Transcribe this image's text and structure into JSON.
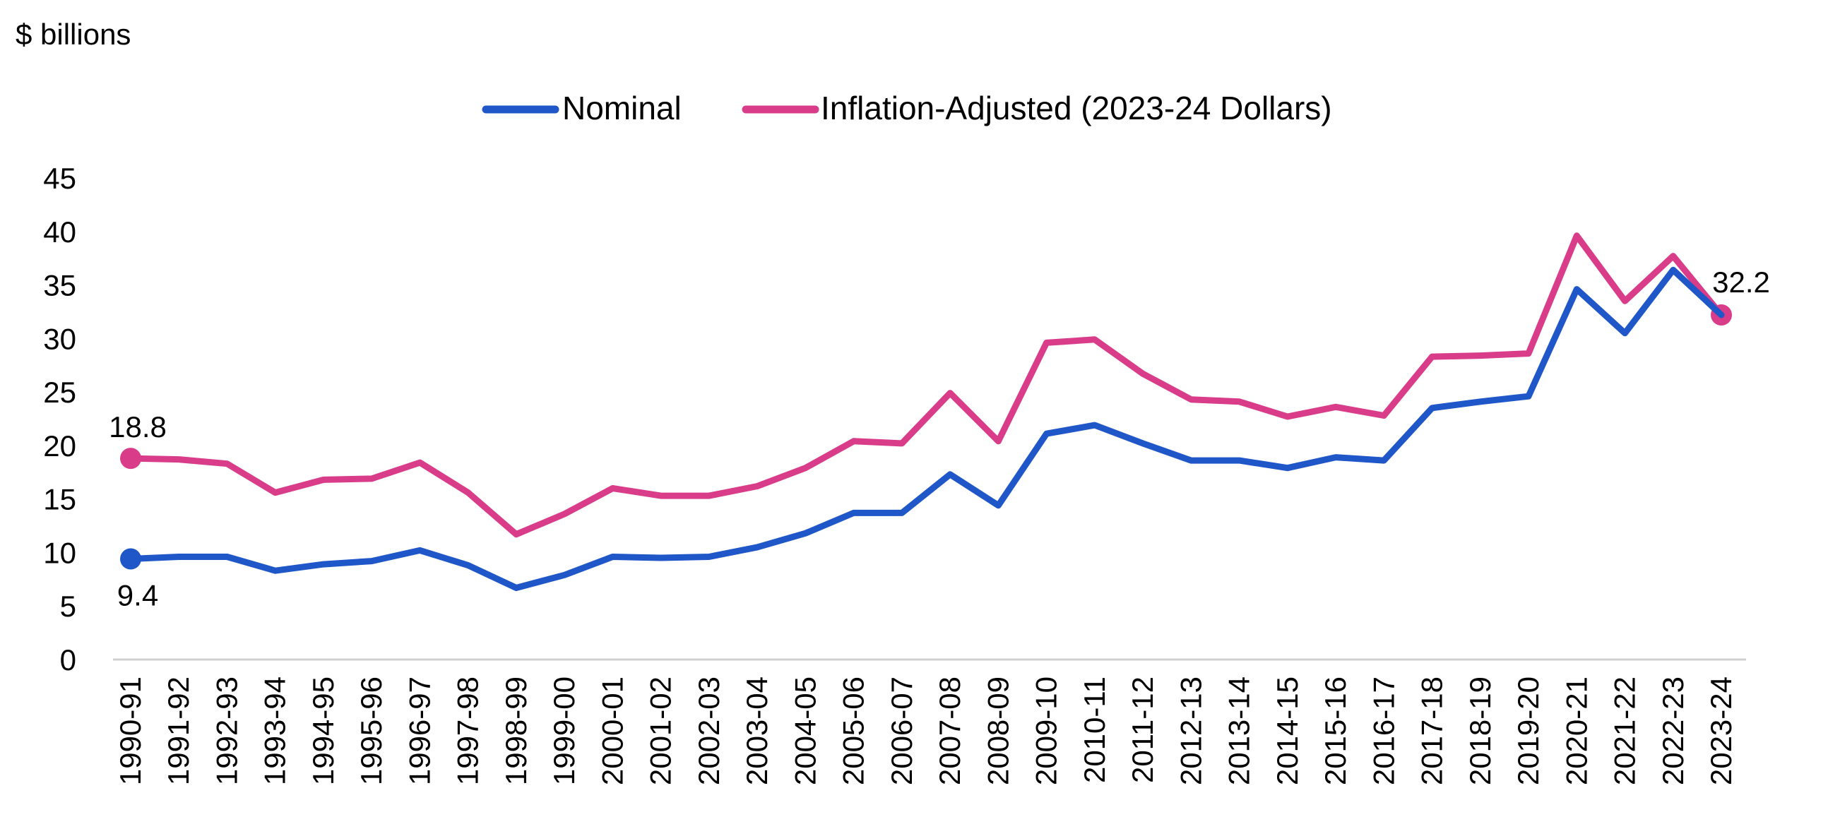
{
  "chart_data": {
    "type": "line",
    "ylabel": "$ billions",
    "xlabel": "",
    "ylim": [
      0,
      45
    ],
    "yticks": [
      0,
      5,
      10,
      15,
      20,
      25,
      30,
      35,
      40,
      45
    ],
    "grid": false,
    "legend_position": "top-center",
    "categories": [
      "1990-91",
      "1991-92",
      "1992-93",
      "1993-94",
      "1994-95",
      "1995-96",
      "1996-97",
      "1997-98",
      "1998-99",
      "1999-00",
      "2000-01",
      "2001-02",
      "2002-03",
      "2003-04",
      "2004-05",
      "2005-06",
      "2006-07",
      "2007-08",
      "2008-09",
      "2009-10",
      "2010-11",
      "2011-12",
      "2012-13",
      "2013-14",
      "2014-15",
      "2015-16",
      "2016-17",
      "2017-18",
      "2018-19",
      "2019-20",
      "2020-21",
      "2021-22",
      "2022-23",
      "2023-24"
    ],
    "series": [
      {
        "name": "Nominal",
        "color": "#1f57c8",
        "values": [
          9.4,
          9.6,
          9.6,
          8.3,
          8.9,
          9.2,
          10.2,
          8.8,
          6.7,
          7.9,
          9.6,
          9.5,
          9.6,
          10.5,
          11.8,
          13.7,
          13.7,
          17.3,
          14.4,
          21.1,
          21.9,
          20.2,
          18.6,
          18.6,
          17.9,
          18.9,
          18.6,
          23.5,
          24.1,
          24.6,
          34.6,
          30.5,
          36.4,
          32.2
        ],
        "labels": {
          "first": "9.4"
        }
      },
      {
        "name": "Inflation-Adjusted (2023-24 Dollars)",
        "color": "#d93d8a",
        "values": [
          18.8,
          18.7,
          18.3,
          15.6,
          16.8,
          16.9,
          18.4,
          15.6,
          11.7,
          13.6,
          16.0,
          15.3,
          15.3,
          16.2,
          17.9,
          20.4,
          20.2,
          24.9,
          20.4,
          29.6,
          29.9,
          26.7,
          24.3,
          24.1,
          22.7,
          23.6,
          22.8,
          28.3,
          28.4,
          28.6,
          39.6,
          33.5,
          37.7,
          32.2
        ],
        "labels": {
          "first": "18.8",
          "last": "32.2"
        }
      }
    ]
  }
}
